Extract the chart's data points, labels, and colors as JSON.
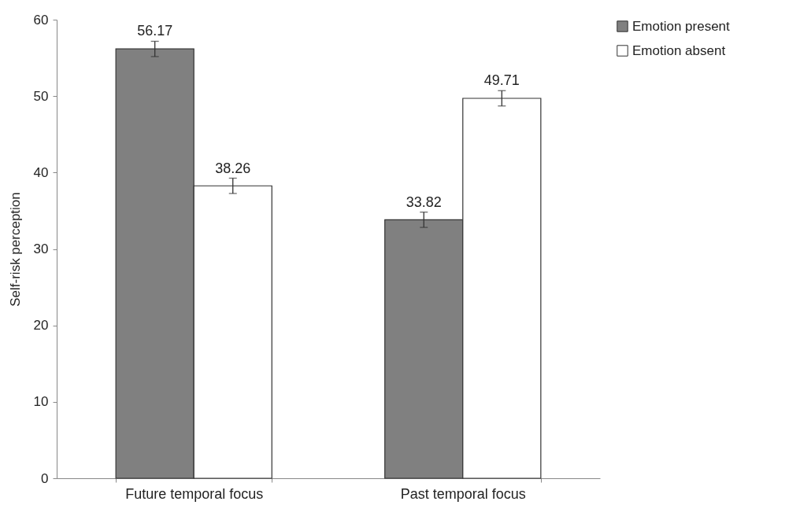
{
  "chart_data": {
    "type": "bar",
    "ylabel": "Self-risk perception",
    "categories": [
      "Future temporal focus",
      "Past temporal focus"
    ],
    "series": [
      {
        "name": "Emotion present",
        "color": "#808080",
        "values": [
          56.17,
          33.82
        ],
        "errors": [
          1,
          1
        ]
      },
      {
        "name": "Emotion absent",
        "color": "#ffffff",
        "values": [
          38.26,
          49.71
        ],
        "errors": [
          1,
          1
        ]
      }
    ],
    "ylim": [
      0,
      60
    ],
    "yticks": [
      0,
      10,
      20,
      30,
      40,
      50,
      60
    ],
    "grid": false,
    "legend": "right",
    "data_labels": true
  }
}
